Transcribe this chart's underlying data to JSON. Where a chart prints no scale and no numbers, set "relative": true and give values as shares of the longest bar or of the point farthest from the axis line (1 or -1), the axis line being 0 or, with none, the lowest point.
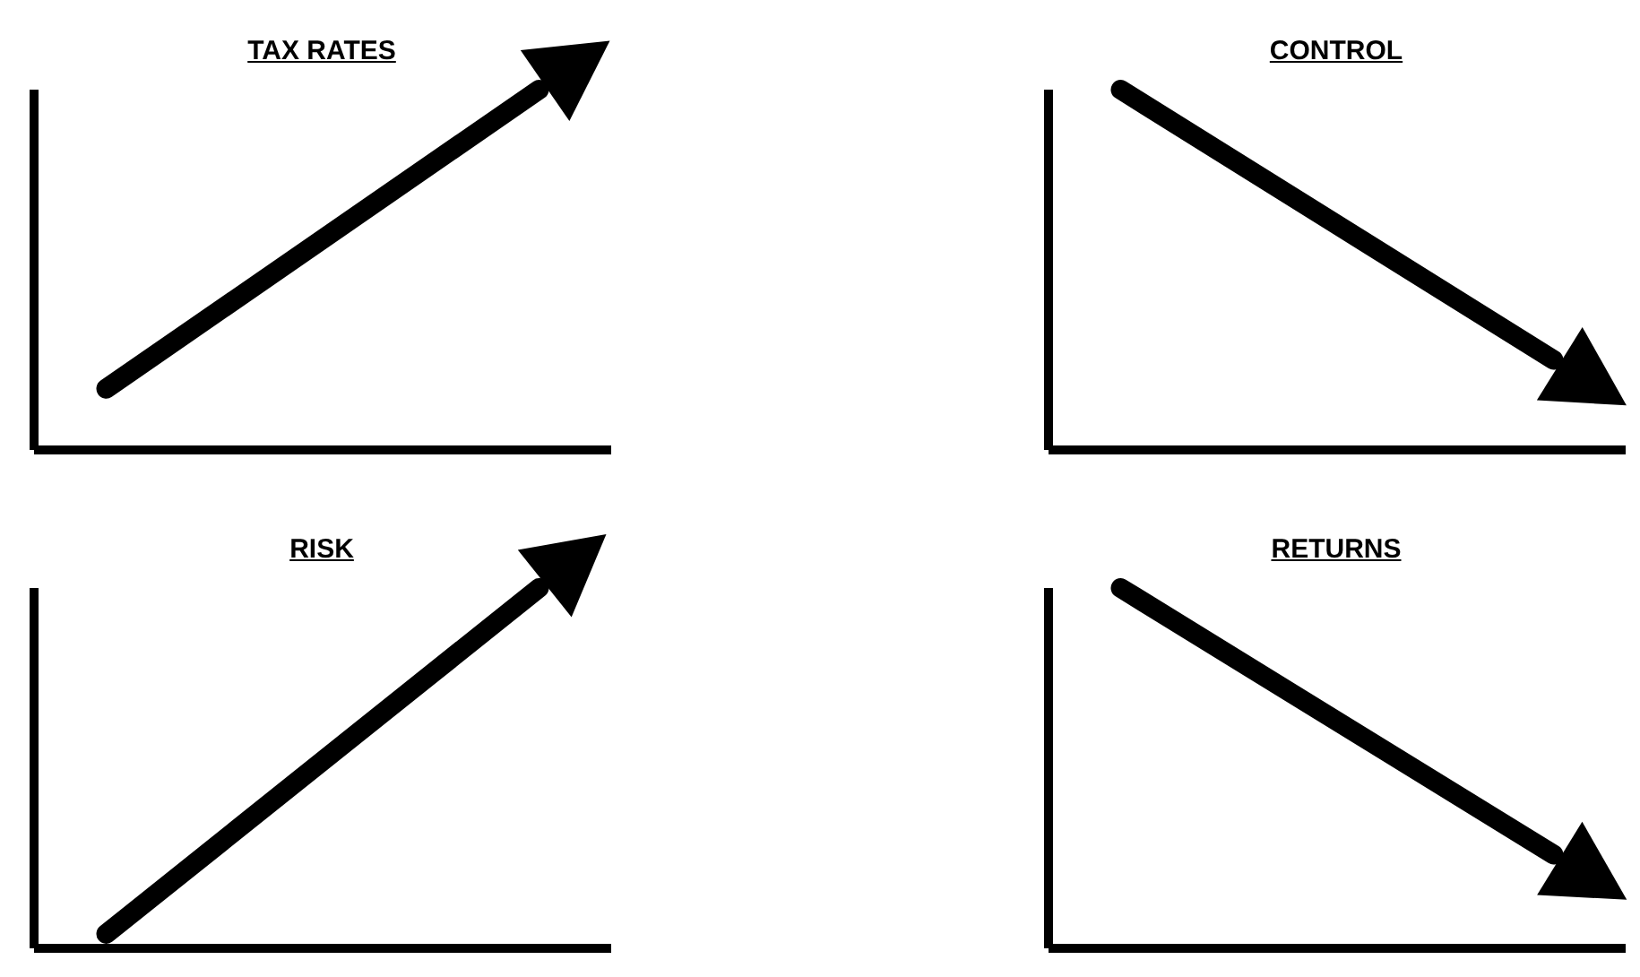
{
  "chart_data": [
    {
      "type": "line",
      "title": "TAX RATES",
      "relative": true,
      "categories": [
        null,
        null,
        null,
        null,
        null,
        null,
        null,
        null,
        null
      ],
      "series": [
        {
          "color": "#000000",
          "values": [
            null,
            0.17,
            null,
            null,
            null,
            null,
            null,
            1,
            null
          ]
        }
      ]
    },
    {
      "type": "line",
      "title": "CONTROL",
      "relative": true,
      "categories": [
        null,
        null,
        null,
        null,
        null,
        null,
        null,
        null,
        null
      ],
      "series": [
        {
          "color": "#000000",
          "values": [
            null,
            1,
            null,
            null,
            null,
            null,
            null,
            0.25,
            null
          ]
        }
      ]
    },
    {
      "type": "line",
      "title": "RISK",
      "relative": true,
      "categories": [
        null,
        null,
        null,
        null,
        null,
        null,
        null,
        null,
        null
      ],
      "series": [
        {
          "color": "#000000",
          "values": [
            null,
            0.04,
            null,
            null,
            null,
            null,
            null,
            1,
            null
          ]
        }
      ]
    },
    {
      "type": "line",
      "title": "RETURNS",
      "relative": true,
      "categories": [
        null,
        null,
        null,
        null,
        null,
        null,
        null,
        null,
        null
      ],
      "series": [
        {
          "color": "#000000",
          "values": [
            null,
            1,
            null,
            null,
            null,
            null,
            null,
            0.26,
            null
          ]
        }
      ]
    }
  ]
}
